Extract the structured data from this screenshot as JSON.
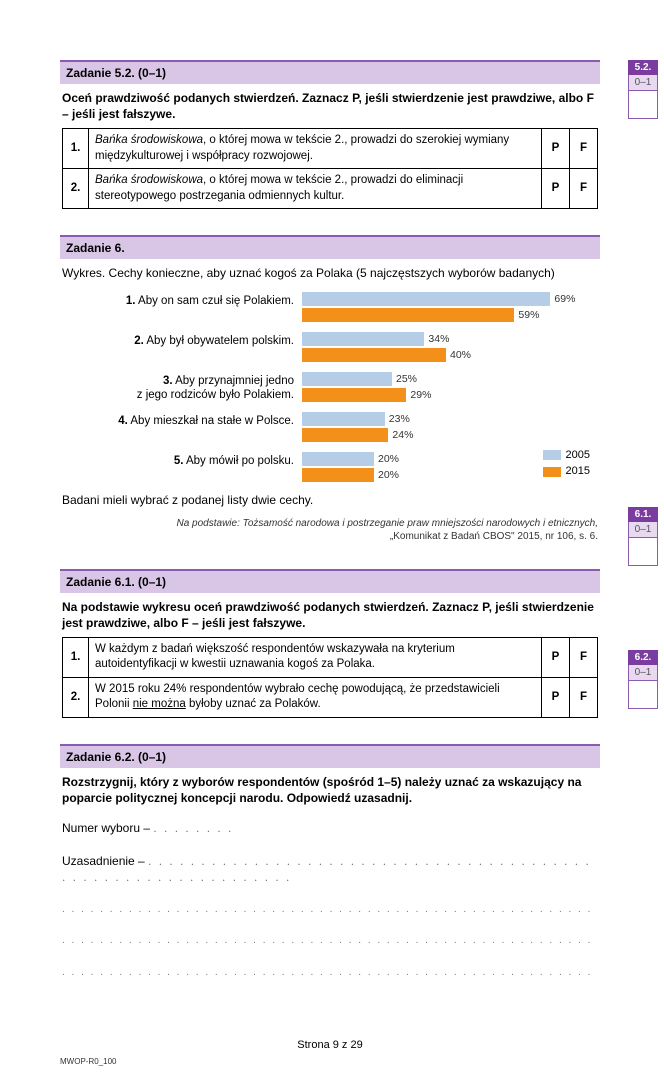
{
  "task52": {
    "header": "Zadanie 5.2. (0–1)",
    "instruction": "Oceń prawdziwość podanych stwierdzeń. Zaznacz P, jeśli stwierdzenie jest prawdziwe, albo F – jeśli jest fałszywe.",
    "rows": [
      {
        "n": "1.",
        "text_i": "Bańka środowiskowa",
        "text_rest": ", o której mowa w tekście 2., prowadzi do szerokiej wymiany międzykulturowej i współpracy rozwojowej.",
        "p": "P",
        "f": "F"
      },
      {
        "n": "2.",
        "text_i": "Bańka środowiskowa",
        "text_rest": ", o której mowa w tekście 2., prowadzi do eliminacji stereotypowego postrzegania odmiennych kultur.",
        "p": "P",
        "f": "F"
      }
    ]
  },
  "task6": {
    "header": "Zadanie 6.",
    "intro": "Wykres. Cechy konieczne, aby uznać kogoś za Polaka (5 najczęstszych wyborów badanych)",
    "max_pct": 75,
    "bar_color_a": "#b6cde8",
    "bar_color_b": "#f39019",
    "legend_a": "2005",
    "legend_b": "2015",
    "items": [
      {
        "label_b": "1.",
        "label": " Aby on sam czuł się Polakiem.",
        "a": 69,
        "b": 59
      },
      {
        "label_b": "2.",
        "label": " Aby był obywatelem polskim.",
        "a": 34,
        "b": 40
      },
      {
        "label_b": "3.",
        "label": " Aby przynajmniej jedno\nz jego rodziców było Polakiem.",
        "a": 25,
        "b": 29
      },
      {
        "label_b": "4.",
        "label": " Aby mieszkał na stałe w Polsce.",
        "a": 23,
        "b": 24
      },
      {
        "label_b": "5.",
        "label": " Aby mówił po polsku.",
        "a": 20,
        "b": 20
      }
    ],
    "note": "Badani mieli wybrać z podanej listy dwie cechy.",
    "source1": "Na podstawie: Tożsamość narodowa i postrzeganie praw mniejszości narodowych i etnicznych,",
    "source2": "„Komunikat z Badań CBOS\" 2015, nr 106, s. 6."
  },
  "task61": {
    "header": "Zadanie 6.1. (0–1)",
    "instruction": "Na podstawie wykresu oceń prawdziwość podanych stwierdzeń. Zaznacz P, jeśli stwierdzenie jest prawdziwe, albo F – jeśli jest fałszywe.",
    "rows": [
      {
        "n": "1.",
        "text": "W każdym z badań większość respondentów wskazywała na kryterium autoidentyfikacji w kwestii uznawania kogoś za Polaka.",
        "p": "P",
        "f": "F"
      },
      {
        "n": "2.",
        "pre": "W 2015 roku 24% respondentów wybrało cechę powodującą, że przedstawicieli Polonii ",
        "u": "nie można",
        "post": " byłoby uznać za Polaków.",
        "p": "P",
        "f": "F"
      }
    ]
  },
  "task62": {
    "header": "Zadanie 6.2. (0–1)",
    "instruction": "Rozstrzygnij, który z wyborów respondentów (spośród 1–5) należy uznać za wskazujący na poparcie politycznej koncepcji narodu. Odpowiedź uzasadnij.",
    "line1_label": "Numer wyboru – ",
    "line2_label": "Uzasadnienie – "
  },
  "side": {
    "s52": {
      "head": "5.2.",
      "score": "0–1"
    },
    "s61": {
      "head": "6.1.",
      "score": "0–1"
    },
    "s62": {
      "head": "6.2.",
      "score": "0–1"
    }
  },
  "footer": {
    "page": "Strona 9 z 29",
    "code": "MWOP-R0_100"
  }
}
